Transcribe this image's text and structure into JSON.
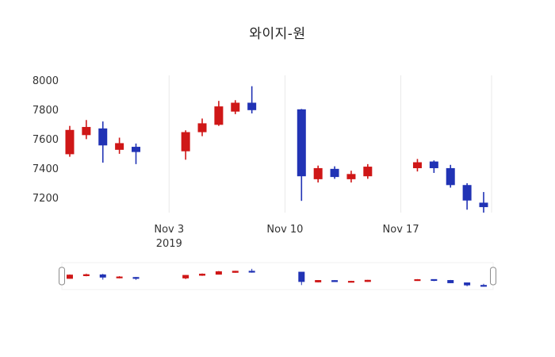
{
  "chart": {
    "title": "와이지-원"
  },
  "colors": {
    "increasing": "#cf1717",
    "decreasing": "#2133b5",
    "grid": "#e8e8e8",
    "axis_text": "#333333",
    "title_text": "#1f1f1f",
    "slider_handle_border": "#8c8c8c",
    "background": "#ffffff"
  },
  "chart_data": {
    "type": "candlestick",
    "title": "와이지-원",
    "legend": "none",
    "grid": "vertical-only",
    "rangeslider": true,
    "x_axis": {
      "range": [
        "2019-10-27",
        "2019-11-23"
      ],
      "ticks": [
        {
          "date": "2019-11-03",
          "label": "Nov 3",
          "sublabel": "2019"
        },
        {
          "date": "2019-11-10",
          "label": "Nov 10",
          "sublabel": ""
        },
        {
          "date": "2019-11-17",
          "label": "Nov 17",
          "sublabel": ""
        }
      ]
    },
    "y_axis": {
      "range": [
        7100,
        8050
      ],
      "ticks": [
        8000,
        7800,
        7600,
        7400,
        7200
      ]
    },
    "candles": [
      {
        "date": "2019-10-28",
        "open": 7500,
        "high": 7690,
        "low": 7480,
        "close": 7660
      },
      {
        "date": "2019-10-29",
        "open": 7630,
        "high": 7730,
        "low": 7600,
        "close": 7680
      },
      {
        "date": "2019-10-30",
        "open": 7670,
        "high": 7720,
        "low": 7440,
        "close": 7560
      },
      {
        "date": "2019-10-31",
        "open": 7530,
        "high": 7610,
        "low": 7500,
        "close": 7570
      },
      {
        "date": "2019-11-01",
        "open": 7545,
        "high": 7570,
        "low": 7430,
        "close": 7515
      },
      {
        "date": "2019-11-04",
        "open": 7520,
        "high": 7660,
        "low": 7460,
        "close": 7645
      },
      {
        "date": "2019-11-05",
        "open": 7650,
        "high": 7740,
        "low": 7620,
        "close": 7705
      },
      {
        "date": "2019-11-06",
        "open": 7700,
        "high": 7860,
        "low": 7690,
        "close": 7820
      },
      {
        "date": "2019-11-07",
        "open": 7790,
        "high": 7865,
        "low": 7770,
        "close": 7845
      },
      {
        "date": "2019-11-08",
        "open": 7845,
        "high": 7960,
        "low": 7775,
        "close": 7800
      },
      {
        "date": "2019-11-11",
        "open": 7800,
        "high": 7805,
        "low": 7180,
        "close": 7350
      },
      {
        "date": "2019-11-12",
        "open": 7330,
        "high": 7420,
        "low": 7305,
        "close": 7400
      },
      {
        "date": "2019-11-13",
        "open": 7395,
        "high": 7415,
        "low": 7330,
        "close": 7345
      },
      {
        "date": "2019-11-14",
        "open": 7330,
        "high": 7385,
        "low": 7305,
        "close": 7360
      },
      {
        "date": "2019-11-15",
        "open": 7350,
        "high": 7430,
        "low": 7330,
        "close": 7410
      },
      {
        "date": "2019-11-18",
        "open": 7405,
        "high": 7465,
        "low": 7380,
        "close": 7440
      },
      {
        "date": "2019-11-19",
        "open": 7445,
        "high": 7455,
        "low": 7370,
        "close": 7405
      },
      {
        "date": "2019-11-20",
        "open": 7400,
        "high": 7425,
        "low": 7270,
        "close": 7290
      },
      {
        "date": "2019-11-21",
        "open": 7285,
        "high": 7300,
        "low": 7120,
        "close": 7185
      },
      {
        "date": "2019-11-22",
        "open": 7165,
        "high": 7240,
        "low": 7100,
        "close": 7140
      }
    ]
  }
}
